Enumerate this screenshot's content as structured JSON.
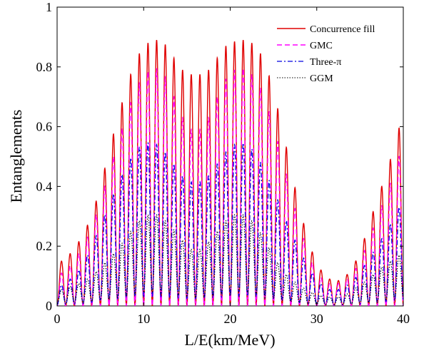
{
  "chart_data": {
    "type": "line",
    "xlabel": "L/E(km/MeV)",
    "ylabel": "Entanglements",
    "xlim": [
      0,
      40
    ],
    "ylim": [
      0,
      1
    ],
    "grid": false,
    "legend_position": "top-right",
    "x_ticks": [
      "0",
      "10",
      "20",
      "30",
      "40"
    ],
    "y_ticks": [
      "0",
      "0.2",
      "0.4",
      "0.6",
      "0.8",
      "1"
    ],
    "x_tick_values": [
      0,
      10,
      20,
      30,
      40
    ],
    "y_tick_values": [
      0,
      0.2,
      0.4,
      0.6,
      0.8,
      1
    ],
    "oscillation_period": 1.0,
    "series": [
      {
        "name": "Concurrence fill",
        "color": "#e00000",
        "style": "solid",
        "minima_factor": 0.0,
        "envelope": [
          [
            0,
            0.14
          ],
          [
            1,
            0.16
          ],
          [
            2,
            0.19
          ],
          [
            3,
            0.24
          ],
          [
            4,
            0.3
          ],
          [
            5,
            0.4
          ],
          [
            6,
            0.52
          ],
          [
            7,
            0.63
          ],
          [
            8,
            0.73
          ],
          [
            9,
            0.82
          ],
          [
            10,
            0.87
          ],
          [
            11,
            0.89
          ],
          [
            12,
            0.89
          ],
          [
            13,
            0.86
          ],
          [
            14,
            0.8
          ],
          [
            15,
            0.78
          ],
          [
            16,
            0.77
          ],
          [
            17,
            0.78
          ],
          [
            18,
            0.8
          ],
          [
            19,
            0.86
          ],
          [
            20,
            0.88
          ],
          [
            21,
            0.89
          ],
          [
            22,
            0.89
          ],
          [
            23,
            0.87
          ],
          [
            24,
            0.82
          ],
          [
            25,
            0.72
          ],
          [
            26,
            0.6
          ],
          [
            27,
            0.46
          ],
          [
            28,
            0.33
          ],
          [
            29,
            0.22
          ],
          [
            30,
            0.14
          ],
          [
            31,
            0.1
          ],
          [
            32,
            0.08
          ],
          [
            33,
            0.09
          ],
          [
            34,
            0.12
          ],
          [
            35,
            0.18
          ],
          [
            36,
            0.27
          ],
          [
            37,
            0.36
          ],
          [
            38,
            0.44
          ],
          [
            39,
            0.54
          ],
          [
            40,
            0.65
          ]
        ]
      },
      {
        "name": "GMC",
        "color": "#ff00ff",
        "style": "dashed",
        "minima_factor": 0.0,
        "envelope": [
          [
            0,
            0.1
          ],
          [
            1,
            0.12
          ],
          [
            2,
            0.15
          ],
          [
            3,
            0.2
          ],
          [
            4,
            0.26
          ],
          [
            5,
            0.35
          ],
          [
            6,
            0.45
          ],
          [
            7,
            0.55
          ],
          [
            8,
            0.64
          ],
          [
            9,
            0.72
          ],
          [
            10,
            0.77
          ],
          [
            11,
            0.8
          ],
          [
            12,
            0.79
          ],
          [
            13,
            0.74
          ],
          [
            14,
            0.66
          ],
          [
            15,
            0.6
          ],
          [
            16,
            0.58
          ],
          [
            17,
            0.6
          ],
          [
            18,
            0.66
          ],
          [
            19,
            0.74
          ],
          [
            20,
            0.78
          ],
          [
            21,
            0.8
          ],
          [
            22,
            0.79
          ],
          [
            23,
            0.76
          ],
          [
            24,
            0.7
          ],
          [
            25,
            0.6
          ],
          [
            26,
            0.5
          ],
          [
            27,
            0.38
          ],
          [
            28,
            0.27
          ],
          [
            29,
            0.18
          ],
          [
            30,
            0.11
          ],
          [
            31,
            0.08
          ],
          [
            32,
            0.07
          ],
          [
            33,
            0.08
          ],
          [
            34,
            0.1
          ],
          [
            35,
            0.15
          ],
          [
            36,
            0.22
          ],
          [
            37,
            0.3
          ],
          [
            38,
            0.37
          ],
          [
            39,
            0.45
          ],
          [
            40,
            0.55
          ]
        ]
      },
      {
        "name": "Three-π",
        "color": "#0000e0",
        "style": "dashdot",
        "minima_factor": 0.06,
        "envelope": [
          [
            0,
            0.06
          ],
          [
            1,
            0.08
          ],
          [
            2,
            0.1
          ],
          [
            3,
            0.14
          ],
          [
            4,
            0.2
          ],
          [
            5,
            0.27
          ],
          [
            6,
            0.34
          ],
          [
            7,
            0.41
          ],
          [
            8,
            0.47
          ],
          [
            9,
            0.52
          ],
          [
            10,
            0.54
          ],
          [
            11,
            0.55
          ],
          [
            12,
            0.53
          ],
          [
            13,
            0.5
          ],
          [
            14,
            0.45
          ],
          [
            15,
            0.42
          ],
          [
            16,
            0.41
          ],
          [
            17,
            0.42
          ],
          [
            18,
            0.45
          ],
          [
            19,
            0.5
          ],
          [
            20,
            0.53
          ],
          [
            21,
            0.55
          ],
          [
            22,
            0.54
          ],
          [
            23,
            0.51
          ],
          [
            24,
            0.45
          ],
          [
            25,
            0.39
          ],
          [
            26,
            0.32
          ],
          [
            27,
            0.25
          ],
          [
            28,
            0.19
          ],
          [
            29,
            0.13
          ],
          [
            30,
            0.09
          ],
          [
            31,
            0.06
          ],
          [
            32,
            0.05
          ],
          [
            33,
            0.06
          ],
          [
            34,
            0.08
          ],
          [
            35,
            0.11
          ],
          [
            36,
            0.16
          ],
          [
            37,
            0.2
          ],
          [
            38,
            0.25
          ],
          [
            39,
            0.3
          ],
          [
            40,
            0.36
          ]
        ]
      },
      {
        "name": "GGM",
        "color": "#000000",
        "style": "dotted",
        "minima_factor": 0.15,
        "envelope": [
          [
            0,
            0.05
          ],
          [
            1,
            0.06
          ],
          [
            2,
            0.07
          ],
          [
            3,
            0.08
          ],
          [
            4,
            0.1
          ],
          [
            5,
            0.13
          ],
          [
            6,
            0.16
          ],
          [
            7,
            0.19
          ],
          [
            8,
            0.23
          ],
          [
            9,
            0.27
          ],
          [
            10,
            0.3
          ],
          [
            11,
            0.31
          ],
          [
            12,
            0.3
          ],
          [
            13,
            0.27
          ],
          [
            14,
            0.24
          ],
          [
            15,
            0.2
          ],
          [
            16,
            0.18
          ],
          [
            17,
            0.2
          ],
          [
            18,
            0.23
          ],
          [
            19,
            0.27
          ],
          [
            20,
            0.3
          ],
          [
            21,
            0.31
          ],
          [
            22,
            0.3
          ],
          [
            23,
            0.27
          ],
          [
            24,
            0.22
          ],
          [
            25,
            0.17
          ],
          [
            26,
            0.12
          ],
          [
            27,
            0.09
          ],
          [
            28,
            0.07
          ],
          [
            29,
            0.05
          ],
          [
            30,
            0.04
          ],
          [
            31,
            0.03
          ],
          [
            32,
            0.03
          ],
          [
            33,
            0.03
          ],
          [
            34,
            0.05
          ],
          [
            35,
            0.07
          ],
          [
            36,
            0.09
          ],
          [
            37,
            0.12
          ],
          [
            38,
            0.14
          ],
          [
            39,
            0.16
          ],
          [
            40,
            0.18
          ]
        ]
      }
    ]
  }
}
